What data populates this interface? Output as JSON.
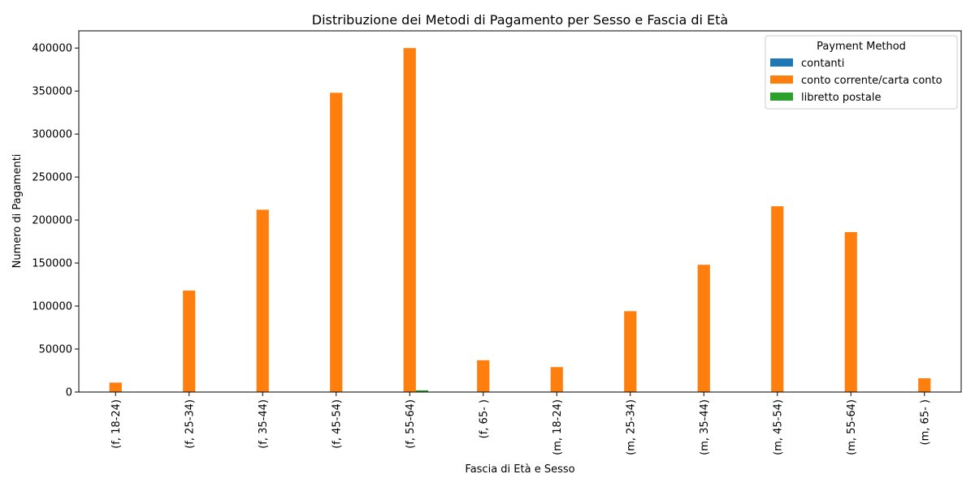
{
  "chart_data": {
    "type": "bar",
    "title": "Distribuzione dei Metodi di Pagamento per Sesso e Fascia di Età",
    "xlabel": "Fascia di Età e Sesso",
    "ylabel": "Numero di Pagamenti",
    "ylim": [
      0,
      420000
    ],
    "yticks": [
      0,
      50000,
      100000,
      150000,
      200000,
      250000,
      300000,
      350000,
      400000
    ],
    "ytick_labels": [
      "0",
      "50000",
      "100000",
      "150000",
      "200000",
      "250000",
      "300000",
      "350000",
      "400000"
    ],
    "categories": [
      "(f, 18-24)",
      "(f, 25-34)",
      "(f, 35-44)",
      "(f, 45-54)",
      "(f, 55-64)",
      "(f, 65- )",
      "(m, 18-24)",
      "(m, 25-34)",
      "(m, 35-44)",
      "(m, 45-54)",
      "(m, 55-64)",
      "(m, 65- )"
    ],
    "legend_title": "Payment Method",
    "legend_position": "top-right",
    "grid": false,
    "series": [
      {
        "name": "contanti",
        "color": "#1f77b4",
        "values": [
          0,
          0,
          0,
          0,
          0,
          0,
          0,
          0,
          0,
          0,
          0,
          0
        ]
      },
      {
        "name": "conto corrente/carta conto",
        "color": "#ff7f0e",
        "values": [
          11000,
          118000,
          212000,
          348000,
          400000,
          37000,
          29000,
          94000,
          148000,
          216000,
          186000,
          16000
        ]
      },
      {
        "name": "libretto postale",
        "color": "#2ca02c",
        "values": [
          0,
          0,
          0,
          0,
          2000,
          0,
          0,
          0,
          0,
          0,
          0,
          0
        ]
      }
    ]
  }
}
